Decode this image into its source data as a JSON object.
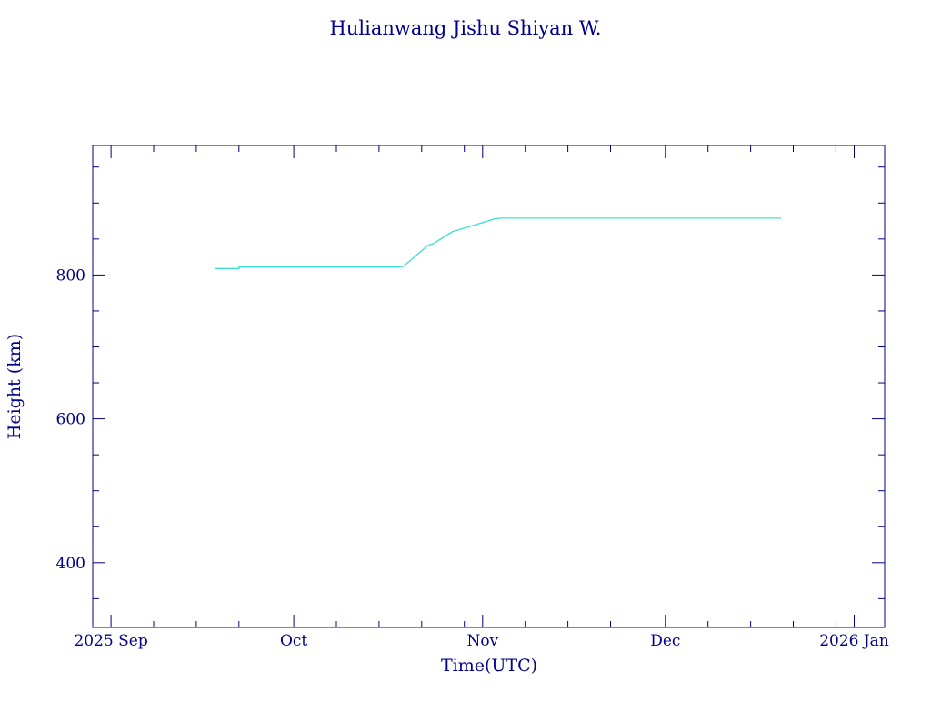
{
  "chart_data": {
    "type": "line",
    "title": "Hulianwang Jishu Shiyan W.",
    "xlabel": "Time(UTC)",
    "ylabel": "Height (km)",
    "x_ticks": [
      "2025 Sep",
      "Oct",
      "Nov",
      "Dec",
      "2026 Jan"
    ],
    "x_tick_dates": [
      "2025-09-01",
      "2025-10-01",
      "2025-11-01",
      "2025-12-01",
      "2026-01-01"
    ],
    "xlim": [
      "2025-08-29",
      "2026-01-06"
    ],
    "y_ticks": [
      "400",
      "600",
      "800"
    ],
    "y_tick_values": [
      400,
      600,
      800
    ],
    "ylim": [
      310,
      980
    ],
    "grid": false,
    "colors": {
      "axis": "#000080",
      "text": "#00008b",
      "series": "#40e0d0"
    },
    "series": [
      {
        "x": [
          "2025-09-18",
          "2025-09-22",
          "2025-09-22",
          "2025-10-18",
          "2025-10-19",
          "2025-10-23",
          "2025-10-24",
          "2025-10-27",
          "2025-11-03",
          "2025-11-04",
          "2025-12-20"
        ],
        "y": [
          809,
          809,
          811,
          811,
          812,
          841,
          844,
          860,
          878,
          879,
          879
        ]
      }
    ]
  }
}
